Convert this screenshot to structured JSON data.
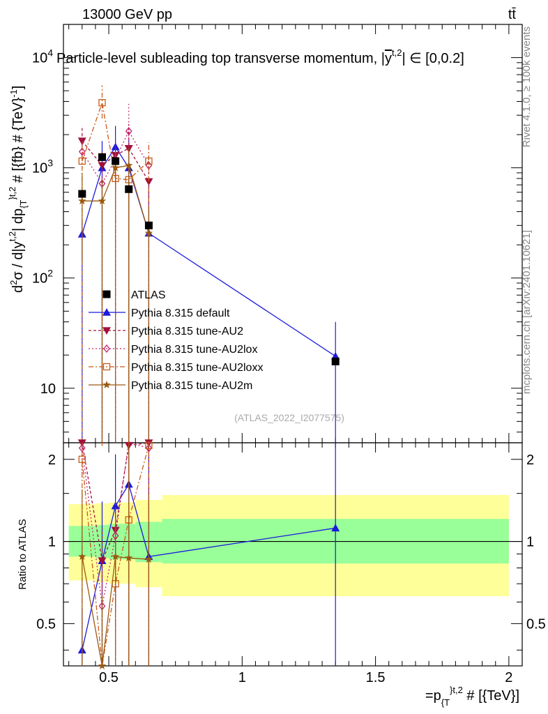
{
  "header": {
    "left": "13000 GeV pp",
    "right": "tt̄"
  },
  "side_labels": {
    "rivet": "Rivet 4.1.0, ≥ 100k events",
    "mcplots": "mcplots.cern.ch [arXiv:2401.10621]"
  },
  "chart_data": {
    "type": "line",
    "title": "Particle-level subleading top transverse momentum, |y^{t,2}| ∈ [0,0.2]",
    "title_parts": {
      "main": "Particle-level subleading top transverse momentum, |",
      "ybar": "y",
      "sup": "t,2",
      "tail": "| ∈ [0,0.2]"
    },
    "watermark": "(ATLAS_2022_I2077575)",
    "xlabel": "=p_{T}^{t,2} # [{TeV}]",
    "xlabel_parts": {
      "main": "=p",
      "sub": "{T",
      "sup": "}t,2",
      "tail": " # [{TeV}]"
    },
    "ylabel": "d²σ / d|y^{t,2}| dp_{T}^{t,2} # [{fb} # {TeV}^{-1}]",
    "ylabel_parts": {
      "a": "d",
      "a_sup": "2",
      "b": "σ / d|y",
      "b_sup": "t,2",
      "c": "| dp",
      "c_sub": "{T",
      "c_sup": "}t,2",
      "d": " # [{fb} # {TeV}",
      "d_sup": "-1",
      "e": "]"
    },
    "ratio_ylabel": "Ratio to ATLAS",
    "xlim": [
      0.33,
      2.05
    ],
    "ylim": [
      3.2,
      20000
    ],
    "ratio_ylim": [
      0.35,
      2.3
    ],
    "x_ticks": [
      0.5,
      1,
      1.5,
      2
    ],
    "x_tick_labels": [
      "0.5",
      "1",
      "1.5",
      "2"
    ],
    "y_ticks": [
      10,
      100,
      1000,
      10000
    ],
    "y_tick_labels": [
      "10",
      "10",
      "10",
      "10"
    ],
    "y_tick_exps": [
      "",
      "2",
      "3",
      "4"
    ],
    "ratio_ticks": [
      0.5,
      1,
      2
    ],
    "ratio_tick_labels": [
      "0.5",
      "1",
      "2"
    ],
    "data": {
      "name": "ATLAS",
      "bins": [
        [
          0.35,
          0.45
        ],
        [
          0.45,
          0.5
        ],
        [
          0.5,
          0.55
        ],
        [
          0.55,
          0.6
        ],
        [
          0.6,
          0.7
        ],
        [
          0.7,
          2.0
        ]
      ],
      "x": [
        0.4,
        0.475,
        0.525,
        0.575,
        0.65,
        1.35
      ],
      "y": [
        580,
        1250,
        1150,
        640,
        300,
        17.5
      ],
      "band_inner": [
        [
          0.88,
          1.14
        ],
        [
          0.87,
          1.15
        ],
        [
          0.86,
          1.16
        ],
        [
          0.86,
          1.16
        ],
        [
          0.84,
          1.18
        ],
        [
          0.83,
          1.21
        ]
      ],
      "band_outer": [
        [
          0.72,
          1.37
        ],
        [
          0.71,
          1.38
        ],
        [
          0.7,
          1.39
        ],
        [
          0.7,
          1.39
        ],
        [
          0.68,
          1.42
        ],
        [
          0.63,
          1.48
        ]
      ]
    },
    "series": [
      {
        "name": "Pythia 8.315 default",
        "color": "#1a1adc",
        "marker": "triangle-up",
        "dash": "",
        "x": [
          0.4,
          0.475,
          0.525,
          0.575,
          0.65,
          1.35
        ],
        "y": [
          250,
          1000,
          1550,
          1000,
          255,
          19.5
        ],
        "err": [
          [
            3.2,
            330
          ],
          [
            3.2,
            1750
          ],
          [
            650,
            2400
          ],
          [
            3.2,
            1800
          ],
          [
            3.2,
            700
          ],
          [
            3.2,
            40
          ]
        ],
        "ratio": [
          0.4,
          0.85,
          1.35,
          1.62,
          0.88,
          1.12
        ]
      },
      {
        "name": "Pythia 8.315 tune-AU2",
        "color": "#a0103a",
        "marker": "triangle-down",
        "dash": "4,3",
        "x": [
          0.4,
          0.475,
          0.525,
          0.575,
          0.65,
          1.35
        ],
        "y": [
          1750,
          1050,
          1300,
          1500,
          750,
          null
        ],
        "err": [
          [
            1300,
            2400
          ],
          [
            3.2,
            1400
          ],
          [
            3.2,
            1800
          ],
          [
            3.2,
            2500
          ],
          [
            3.2,
            1300
          ],
          null
        ],
        "ratio": [
          2.3,
          0.85,
          1.1,
          2.25,
          2.3,
          null
        ]
      },
      {
        "name": "Pythia 8.315 tune-AU2lox",
        "color": "#c0206a",
        "marker": "diamond",
        "dash": "2,3",
        "x": [
          0.4,
          0.475,
          0.525,
          0.575,
          0.65,
          1.35
        ],
        "y": [
          1400,
          720,
          1200,
          2150,
          1050,
          null
        ],
        "err": [
          [
            1000,
            2000
          ],
          [
            3.2,
            1000
          ],
          [
            3.2,
            1600
          ],
          [
            1000,
            3800
          ],
          [
            3.2,
            1600
          ],
          null
        ],
        "ratio": [
          2.2,
          0.58,
          1.05,
          2.35,
          2.2,
          null
        ]
      },
      {
        "name": "Pythia 8.315 tune-AU2loxx",
        "color": "#c85a18",
        "marker": "square-open",
        "dash": "7,3,2,3",
        "x": [
          0.4,
          0.475,
          0.525,
          0.575,
          0.65,
          1.35
        ],
        "y": [
          1150,
          3900,
          800,
          780,
          1150,
          null
        ],
        "err": [
          [
            3.2,
            1800
          ],
          [
            2800,
            5600
          ],
          [
            3.2,
            1300
          ],
          [
            3.2,
            1200
          ],
          [
            3.2,
            1700
          ],
          null
        ],
        "ratio": [
          2.0,
          0.32,
          0.7,
          1.2,
          2.25,
          null
        ]
      },
      {
        "name": "Pythia 8.315 tune-AU2m",
        "color": "#9a5a10",
        "marker": "star",
        "dash": "",
        "x": [
          0.4,
          0.475,
          0.525,
          0.575,
          0.65,
          1.35
        ],
        "y": [
          500,
          500,
          1000,
          1050,
          255,
          null
        ],
        "err": [
          [
            140,
            900
          ],
          [
            3.2,
            800
          ],
          [
            3.2,
            1400
          ],
          [
            3.2,
            1500
          ],
          [
            3.2,
            450
          ],
          null
        ],
        "ratio": [
          0.88,
          0.35,
          0.88,
          0.87,
          0.86,
          null
        ]
      }
    ]
  }
}
